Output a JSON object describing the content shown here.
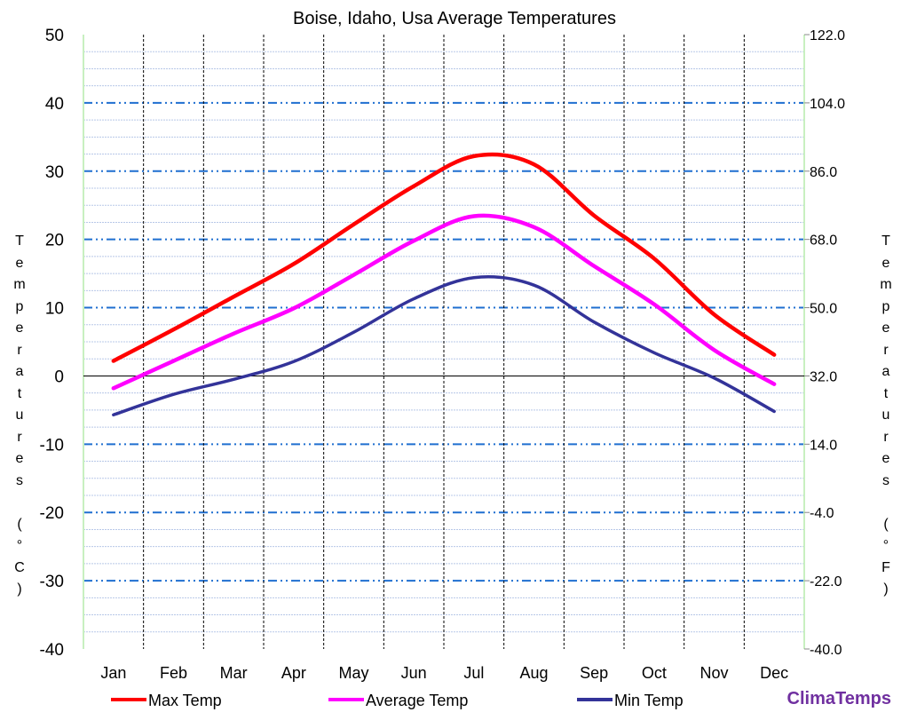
{
  "chart_data": {
    "type": "line",
    "title": "Boise, Idaho, Usa Average Temperatures",
    "categories": [
      "Jan",
      "Feb",
      "Mar",
      "Apr",
      "May",
      "Jun",
      "Jul",
      "Aug",
      "Sep",
      "Oct",
      "Nov",
      "Dec"
    ],
    "ylabel": "Temperatures (°C)",
    "ylabel_right": "Temperatures (°F)",
    "ylim": [
      -40,
      50
    ],
    "yticks": [
      50,
      40,
      30,
      20,
      10,
      0,
      -10,
      -20,
      -30,
      -40
    ],
    "yticks_right": [
      "122.0",
      "104.0",
      "86.0",
      "68.0",
      "50.0",
      "32.0",
      "14.0",
      "-4.0",
      "-22.0",
      "-40.0"
    ],
    "grid": true,
    "legend_position": "bottom",
    "series": [
      {
        "name": "Max Temp",
        "color": "#ff0000",
        "values": [
          2.2,
          6.8,
          11.6,
          16.4,
          22.2,
          27.8,
          32.2,
          31.0,
          23.5,
          17.2,
          9.0,
          3.1
        ]
      },
      {
        "name": "Average Temp",
        "color": "#ff00ff",
        "values": [
          -1.8,
          2.2,
          6.2,
          9.9,
          14.8,
          19.8,
          23.4,
          21.8,
          16.1,
          10.5,
          3.8,
          -1.2
        ]
      },
      {
        "name": "Min Temp",
        "color": "#333399",
        "values": [
          -5.7,
          -2.7,
          -0.5,
          2.1,
          6.4,
          11.3,
          14.4,
          13.3,
          7.9,
          3.4,
          -0.3,
          -5.2
        ]
      }
    ]
  },
  "brand": "ClimaTemps"
}
